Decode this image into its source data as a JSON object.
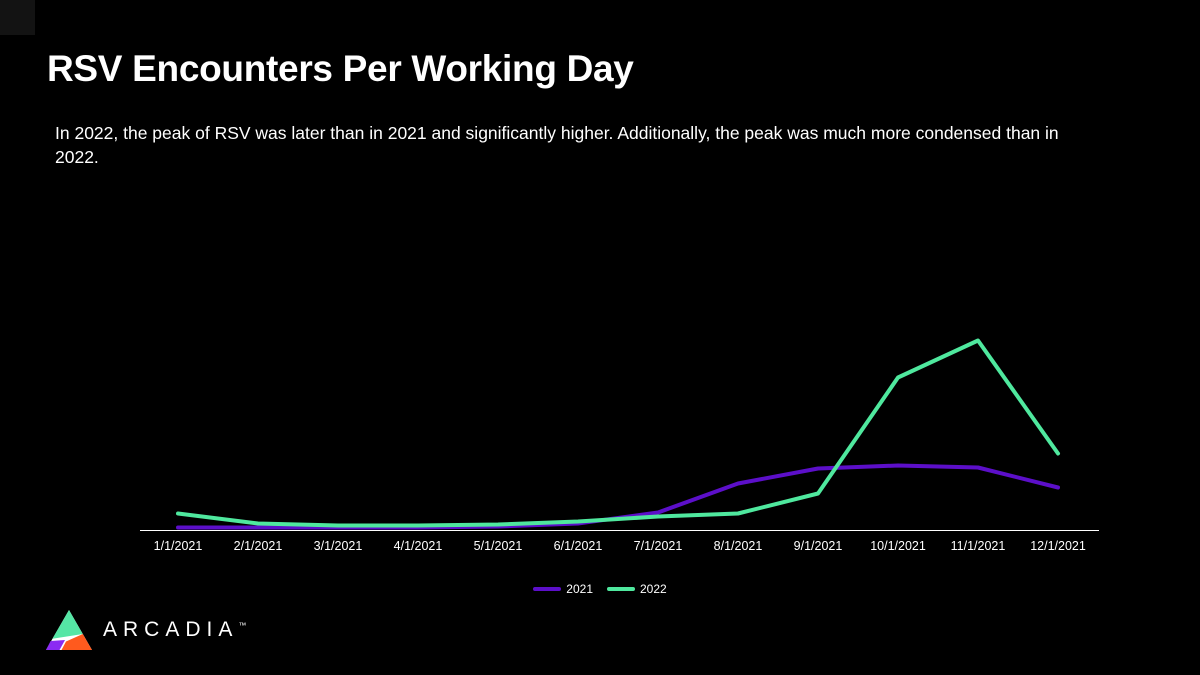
{
  "slide": {
    "title": "RSV Encounters Per Working Day",
    "subtitle": "In 2022, the peak of RSV was later than in 2021 and significantly higher. Additionally, the peak was much more condensed than in 2022."
  },
  "chart_data": {
    "type": "line",
    "title": "RSV Encounters Per Working Day",
    "categories": [
      "1/1/2021",
      "2/1/2021",
      "3/1/2021",
      "4/1/2021",
      "5/1/2021",
      "6/1/2021",
      "7/1/2021",
      "8/1/2021",
      "9/1/2021",
      "10/1/2021",
      "11/1/2021",
      "12/1/2021"
    ],
    "series": [
      {
        "name": "2021",
        "color": "#5C0FC9",
        "values": [
          3,
          3,
          3,
          3,
          4,
          7,
          18,
          47,
          62,
          65,
          63,
          43
        ]
      },
      {
        "name": "2022",
        "color": "#4FE89E",
        "values": [
          17,
          7,
          5,
          5,
          6,
          9,
          14,
          17,
          37,
          153,
          190,
          77
        ]
      }
    ],
    "xlabel": "",
    "ylabel": "",
    "ylim": [
      0,
      210
    ],
    "y_axis_visible": false,
    "grid": false,
    "legend_position": "bottom",
    "note": "Y-axis is not shown on the slide; series values estimated in relative units from line heights."
  },
  "axis": {
    "color": "#FFFFFF"
  },
  "logo": {
    "text": "ARCADIA",
    "trademark": "™",
    "triangle_colors": {
      "green": "#55E6A5",
      "purple": "#8B2BF2",
      "orange": "#FF5A1E",
      "sliver": "#FFFFFF"
    }
  },
  "colors": {
    "background": "#000000",
    "text": "#FFFFFF",
    "corner_accent": "#131313"
  }
}
